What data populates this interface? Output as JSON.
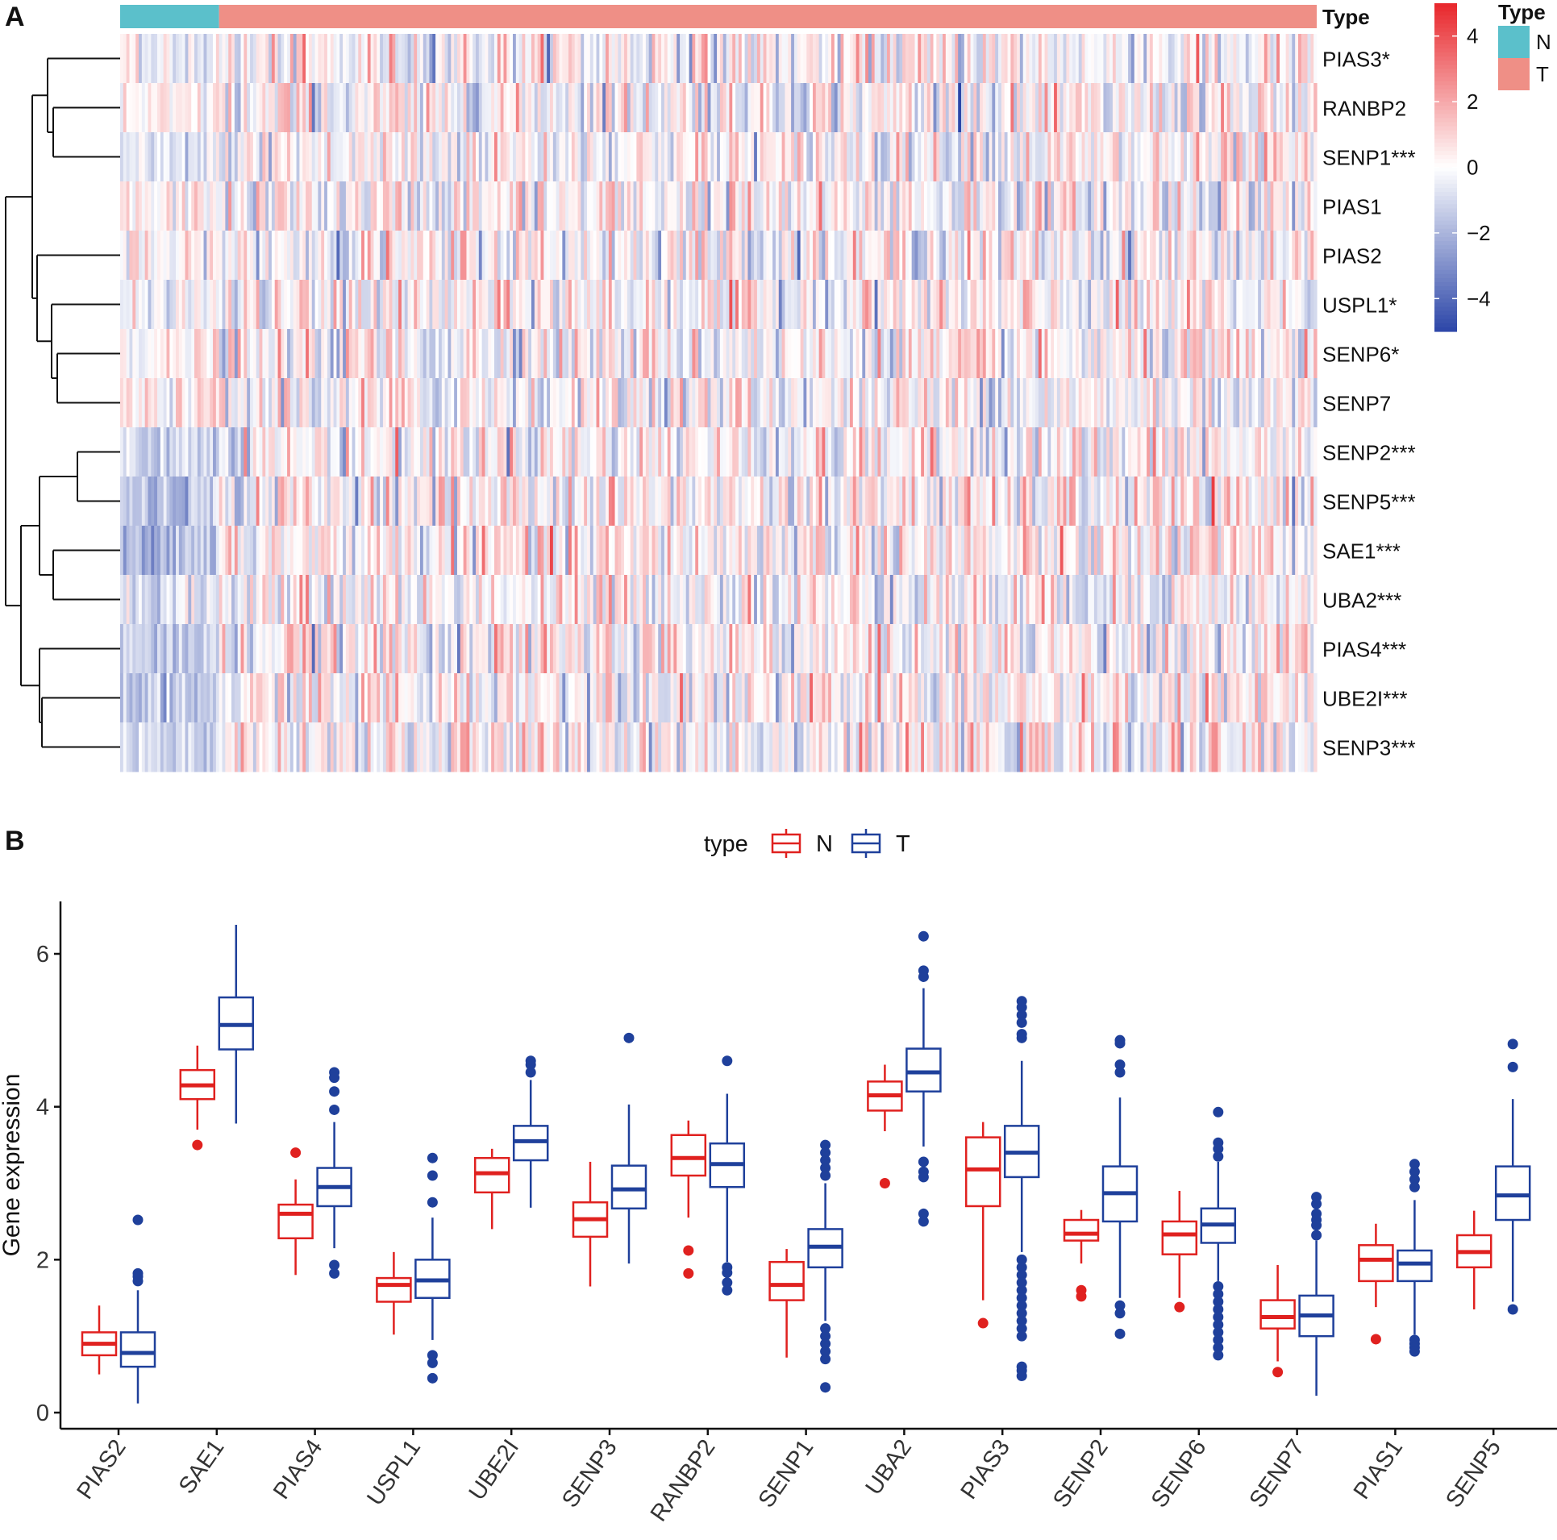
{
  "panel_a": {
    "label": "A",
    "annotation_title": "Type",
    "colorbar_ticks": [
      "4",
      "2",
      "0",
      "−2",
      "−4"
    ],
    "colorbar_values": [
      4,
      2,
      0,
      -2,
      -4
    ],
    "colorbar_range": [
      -5,
      5
    ],
    "legend_title": "Type",
    "legend_items": [
      {
        "label": "N",
        "color": "#5bc0cb"
      },
      {
        "label": "T",
        "color": "#ef8f86"
      }
    ],
    "colors": {
      "low": "#2c46a8",
      "mid": "#ffffff",
      "high": "#e8262b"
    }
  },
  "panel_b": {
    "label": "B",
    "legend_title": "type",
    "legend_items": [
      {
        "label": "N",
        "color": "#e0211f"
      },
      {
        "label": "T",
        "color": "#1f409b"
      }
    ]
  },
  "chart_data": [
    {
      "type": "heatmap",
      "title": "",
      "rows": [
        "PIAS3*",
        "RANBP2",
        "SENP1***",
        "PIAS1",
        "PIAS2",
        "USPL1*",
        "SENP6*",
        "SENP7",
        "SENP2***",
        "SENP5***",
        "SAE1***",
        "UBA2***",
        "PIAS4***",
        "UBE2I***",
        "SENP3***"
      ],
      "row_means_N": [
        -0.4,
        0.1,
        -0.9,
        0.2,
        0.0,
        -0.3,
        0.2,
        0.3,
        -1.0,
        -1.6,
        -1.8,
        -0.8,
        -1.4,
        -1.6,
        -1.2
      ],
      "sample_groups": [
        {
          "type": "N",
          "count": 32
        },
        {
          "type": "T",
          "count": 355
        }
      ],
      "value_range": [
        -5,
        5
      ],
      "legend": "right"
    },
    {
      "type": "box",
      "title": "",
      "xlabel": "",
      "ylabel": "Gene expression",
      "ylim": [
        0,
        6.6
      ],
      "yticks": [
        0,
        2,
        4,
        6
      ],
      "ytick_labels": [
        "0",
        "2",
        "4",
        "6"
      ],
      "categories": [
        "PIAS2",
        "SAE1",
        "PIAS4",
        "USPL1",
        "UBE2I",
        "SENP3",
        "RANBP2",
        "SENP1",
        "UBA2",
        "PIAS3",
        "SENP2",
        "SENP6",
        "SENP7",
        "PIAS1",
        "SENP5"
      ],
      "legend": "top-center",
      "series": [
        {
          "name": "N",
          "stats": [
            {
              "min": 0.5,
              "q1": 0.75,
              "median": 0.9,
              "q3": 1.05,
              "max": 1.4,
              "outliers": []
            },
            {
              "min": 3.7,
              "q1": 4.1,
              "median": 4.28,
              "q3": 4.48,
              "max": 4.8,
              "outliers": [
                3.5
              ]
            },
            {
              "min": 1.8,
              "q1": 2.28,
              "median": 2.6,
              "q3": 2.72,
              "max": 3.05,
              "outliers": [
                3.4
              ]
            },
            {
              "min": 1.02,
              "q1": 1.45,
              "median": 1.67,
              "q3": 1.76,
              "max": 2.1,
              "outliers": []
            },
            {
              "min": 2.4,
              "q1": 2.88,
              "median": 3.13,
              "q3": 3.33,
              "max": 3.45,
              "outliers": []
            },
            {
              "min": 1.65,
              "q1": 2.3,
              "median": 2.53,
              "q3": 2.75,
              "max": 3.28,
              "outliers": []
            },
            {
              "min": 2.55,
              "q1": 3.1,
              "median": 3.33,
              "q3": 3.63,
              "max": 3.82,
              "outliers": [
                2.12,
                1.82
              ]
            },
            {
              "min": 0.72,
              "q1": 1.47,
              "median": 1.67,
              "q3": 1.97,
              "max": 2.14,
              "outliers": []
            },
            {
              "min": 3.68,
              "q1": 3.95,
              "median": 4.15,
              "q3": 4.33,
              "max": 4.55,
              "outliers": [
                3.0
              ]
            },
            {
              "min": 1.47,
              "q1": 2.7,
              "median": 3.18,
              "q3": 3.6,
              "max": 3.8,
              "outliers": [
                1.17
              ]
            },
            {
              "min": 1.95,
              "q1": 2.25,
              "median": 2.34,
              "q3": 2.52,
              "max": 2.65,
              "outliers": [
                1.6,
                1.52
              ]
            },
            {
              "min": 1.5,
              "q1": 2.07,
              "median": 2.33,
              "q3": 2.5,
              "max": 2.9,
              "outliers": [
                1.38
              ]
            },
            {
              "min": 0.67,
              "q1": 1.1,
              "median": 1.25,
              "q3": 1.47,
              "max": 1.93,
              "outliers": [
                0.53
              ]
            },
            {
              "min": 1.38,
              "q1": 1.72,
              "median": 2.0,
              "q3": 2.19,
              "max": 2.47,
              "outliers": [
                0.96
              ]
            },
            {
              "min": 1.35,
              "q1": 1.9,
              "median": 2.1,
              "q3": 2.32,
              "max": 2.64,
              "outliers": []
            }
          ]
        },
        {
          "name": "T",
          "stats": [
            {
              "min": 0.12,
              "q1": 0.6,
              "median": 0.78,
              "q3": 1.05,
              "max": 1.6,
              "outliers": [
                1.72,
                1.78,
                1.82,
                2.52
              ]
            },
            {
              "min": 3.78,
              "q1": 4.75,
              "median": 5.07,
              "q3": 5.43,
              "max": 6.38,
              "outliers": []
            },
            {
              "min": 2.15,
              "q1": 2.7,
              "median": 2.95,
              "q3": 3.2,
              "max": 3.8,
              "outliers": [
                4.45,
                4.38,
                4.2,
                3.96,
                1.93,
                1.82
              ]
            },
            {
              "min": 0.95,
              "q1": 1.5,
              "median": 1.73,
              "q3": 2.0,
              "max": 2.55,
              "outliers": [
                3.33,
                3.1,
                2.75,
                0.75,
                0.65,
                0.45
              ]
            },
            {
              "min": 2.68,
              "q1": 3.3,
              "median": 3.55,
              "q3": 3.75,
              "max": 4.35,
              "outliers": [
                4.6,
                4.55,
                4.45
              ]
            },
            {
              "min": 1.95,
              "q1": 2.67,
              "median": 2.92,
              "q3": 3.23,
              "max": 4.03,
              "outliers": [
                4.9
              ]
            },
            {
              "min": 1.97,
              "q1": 2.95,
              "median": 3.25,
              "q3": 3.52,
              "max": 4.17,
              "outliers": [
                4.6,
                1.9,
                1.83,
                1.7,
                1.6
              ]
            },
            {
              "min": 1.2,
              "q1": 1.9,
              "median": 2.17,
              "q3": 2.4,
              "max": 3.0,
              "outliers": [
                3.5,
                3.4,
                3.3,
                3.2,
                3.1,
                1.1,
                1.0,
                0.9,
                0.8,
                0.7,
                0.33
              ]
            },
            {
              "min": 3.48,
              "q1": 4.2,
              "median": 4.45,
              "q3": 4.76,
              "max": 5.55,
              "outliers": [
                6.23,
                5.78,
                5.7,
                3.28,
                3.15,
                3.08,
                2.6,
                2.5
              ]
            },
            {
              "min": 2.1,
              "q1": 3.08,
              "median": 3.4,
              "q3": 3.75,
              "max": 4.6,
              "outliers": [
                5.38,
                5.3,
                5.2,
                5.1,
                4.95,
                4.9,
                2.0,
                1.9,
                1.8,
                1.7,
                1.6,
                1.5,
                1.4,
                1.3,
                1.2,
                1.1,
                1.0,
                0.6,
                0.55,
                0.48
              ]
            },
            {
              "min": 1.5,
              "q1": 2.5,
              "median": 2.87,
              "q3": 3.22,
              "max": 4.12,
              "outliers": [
                4.87,
                4.83,
                4.55,
                4.45,
                1.4,
                1.3,
                1.03
              ]
            },
            {
              "min": 1.72,
              "q1": 2.22,
              "median": 2.46,
              "q3": 2.67,
              "max": 3.28,
              "outliers": [
                3.93,
                3.53,
                3.45,
                3.35,
                1.65,
                1.55,
                1.45,
                1.35,
                1.25,
                1.15,
                1.05,
                0.95,
                0.85,
                0.75
              ]
            },
            {
              "min": 0.22,
              "q1": 1.0,
              "median": 1.27,
              "q3": 1.53,
              "max": 2.25,
              "outliers": [
                2.82,
                2.73,
                2.6,
                2.52,
                2.45,
                2.32
              ]
            },
            {
              "min": 1.02,
              "q1": 1.72,
              "median": 1.95,
              "q3": 2.12,
              "max": 2.78,
              "outliers": [
                3.25,
                3.15,
                3.05,
                2.95,
                0.95,
                0.9,
                0.85,
                0.8
              ]
            },
            {
              "min": 1.45,
              "q1": 2.52,
              "median": 2.84,
              "q3": 3.22,
              "max": 4.1,
              "outliers": [
                4.82,
                4.52,
                1.35
              ]
            }
          ]
        }
      ]
    }
  ]
}
